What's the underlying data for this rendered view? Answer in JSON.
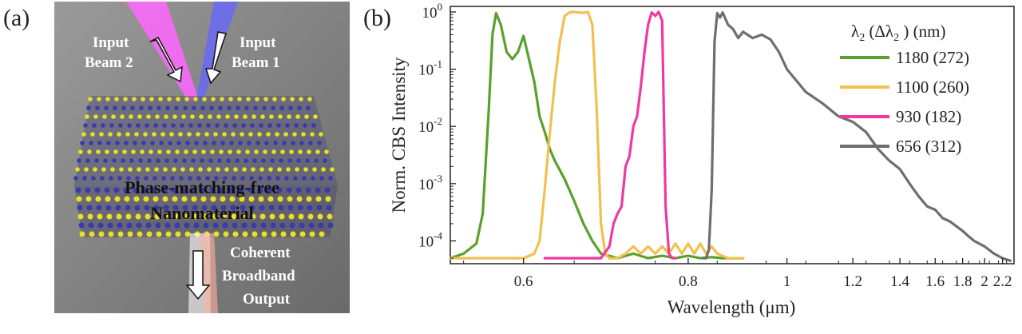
{
  "panels": {
    "a_label": "(a)",
    "b_label": "(b)"
  },
  "illustration": {
    "beam2_line1": "Input",
    "beam2_line2": "Beam 2",
    "beam1_line1": "Input",
    "beam1_line2": "Beam 1",
    "material_line1": "Phase-matching-free",
    "material_line2": "Nanomaterial",
    "output_line1": "Coherent",
    "output_line2": "Broadband",
    "output_line3": "Output",
    "colors": {
      "background": "#7d7d7d",
      "beam2": "#ff66ff",
      "beam1": "#6a6af5",
      "atom_yellow": "#e8e020",
      "atom_blue": "#3a3aa8",
      "output": "#ffb0a0"
    }
  },
  "chart_data": {
    "type": "line",
    "xlabel": "Wavelength (μm)",
    "ylabel": "Norm. CBS Intensity",
    "xscale": "reciprocal",
    "yscale": "log",
    "xlim": [
      0.54,
      2.35
    ],
    "ylim": [
      4e-05,
      1.25
    ],
    "x_ticks": [
      {
        "value": 0.6,
        "label": "0.6"
      },
      {
        "value": 0.8,
        "label": "0.8"
      },
      {
        "value": 1.0,
        "label": "1"
      },
      {
        "value": 1.2,
        "label": "1.2"
      },
      {
        "value": 1.4,
        "label": "1.4"
      },
      {
        "value": 1.6,
        "label": "1.6"
      },
      {
        "value": 1.8,
        "label": "1.8"
      },
      {
        "value": 2.0,
        "label": "2"
      },
      {
        "value": 2.2,
        "label": "2.2"
      }
    ],
    "y_ticks": [
      {
        "value": 1,
        "base": "10",
        "exp": "0"
      },
      {
        "value": 0.1,
        "base": "10",
        "exp": "-1"
      },
      {
        "value": 0.01,
        "base": "10",
        "exp": "-2"
      },
      {
        "value": 0.001,
        "base": "10",
        "exp": "-3"
      },
      {
        "value": 0.0001,
        "base": "10",
        "exp": "-4"
      }
    ],
    "legend": {
      "title_main": "λ",
      "title_sub": "2",
      "title_mid": " (Δλ",
      "title_end": " ) (nm)",
      "placement": "top-right"
    },
    "series": [
      {
        "name": "1180 (272)",
        "color": "#5aa02c",
        "x": [
          0.54,
          0.55,
          0.56,
          0.565,
          0.57,
          0.573,
          0.576,
          0.58,
          0.585,
          0.59,
          0.595,
          0.6,
          0.605,
          0.61,
          0.615,
          0.62,
          0.625,
          0.63,
          0.64,
          0.65,
          0.66,
          0.67,
          0.68,
          0.7,
          0.72,
          0.74,
          0.76,
          0.78,
          0.8,
          0.82,
          0.84,
          0.86,
          0.88,
          0.9
        ],
        "y": [
          5e-05,
          6e-05,
          9e-05,
          0.0003,
          0.02,
          0.4,
          0.95,
          0.6,
          0.2,
          0.15,
          0.2,
          0.38,
          0.15,
          0.06,
          0.015,
          0.008,
          0.004,
          0.0025,
          0.0012,
          0.0005,
          0.0002,
          0.0001,
          6e-05,
          5e-05,
          6e-05,
          5e-05,
          5.5e-05,
          5e-05,
          5.5e-05,
          5e-05,
          5.2e-05,
          5e-05,
          5e-05,
          5e-05
        ]
      },
      {
        "name": "1100 (260)",
        "color": "#f2c050",
        "x": [
          0.54,
          0.58,
          0.6,
          0.61,
          0.615,
          0.62,
          0.625,
          0.63,
          0.635,
          0.64,
          0.645,
          0.65,
          0.655,
          0.66,
          0.665,
          0.67,
          0.675,
          0.68,
          0.685,
          0.69,
          0.7,
          0.71,
          0.72,
          0.73,
          0.74,
          0.75,
          0.76,
          0.77,
          0.78,
          0.79,
          0.8,
          0.81,
          0.82,
          0.83,
          0.84,
          0.85,
          0.87,
          0.9
        ],
        "y": [
          5e-05,
          5e-05,
          5e-05,
          6e-05,
          0.0001,
          0.0008,
          0.008,
          0.06,
          0.3,
          0.85,
          0.98,
          1.0,
          0.98,
          0.97,
          1.0,
          0.6,
          0.02,
          0.0002,
          6e-05,
          5e-05,
          5e-05,
          6e-05,
          8e-05,
          6e-05,
          8e-05,
          6e-05,
          8e-05,
          6e-05,
          9e-05,
          6e-05,
          9e-05,
          6e-05,
          9e-05,
          6e-05,
          8e-05,
          6e-05,
          5e-05,
          5e-05
        ]
      },
      {
        "name": "930 (182)",
        "color": "#ee3aa0",
        "x": [
          0.62,
          0.65,
          0.68,
          0.69,
          0.695,
          0.7,
          0.705,
          0.71,
          0.715,
          0.72,
          0.725,
          0.73,
          0.735,
          0.74,
          0.745,
          0.75,
          0.755,
          0.76,
          0.765,
          0.77,
          0.775,
          0.78
        ],
        "y": [
          5e-05,
          5e-05,
          5e-05,
          8e-05,
          0.0002,
          0.0003,
          0.0004,
          0.002,
          0.003,
          0.01,
          0.015,
          0.05,
          0.2,
          0.6,
          0.98,
          0.85,
          1.0,
          0.7,
          0.0004,
          6e-05,
          5e-05,
          5e-05
        ]
      },
      {
        "name": "656 (312)",
        "color": "#6e6e6e",
        "x": [
          0.825,
          0.83,
          0.835,
          0.84,
          0.845,
          0.85,
          0.855,
          0.86,
          0.87,
          0.88,
          0.89,
          0.9,
          0.92,
          0.94,
          0.96,
          0.98,
          1.0,
          1.05,
          1.1,
          1.15,
          1.2,
          1.25,
          1.3,
          1.35,
          1.4,
          1.45,
          1.5,
          1.55,
          1.6,
          1.65,
          1.7,
          1.75,
          1.8,
          1.85,
          1.9,
          2.0,
          2.1,
          2.2,
          2.3
        ],
        "y": [
          5e-05,
          5e-05,
          7e-05,
          0.0008,
          0.3,
          0.95,
          0.8,
          0.98,
          0.6,
          0.5,
          0.35,
          0.45,
          0.35,
          0.4,
          0.33,
          0.2,
          0.1,
          0.04,
          0.025,
          0.015,
          0.012,
          0.008,
          0.004,
          0.0025,
          0.0018,
          0.001,
          0.0006,
          0.0004,
          0.00035,
          0.00025,
          0.00022,
          0.00018,
          0.00015,
          0.00012,
          0.0001,
          8e-05,
          6e-05,
          5e-05,
          4.5e-05
        ]
      }
    ]
  }
}
